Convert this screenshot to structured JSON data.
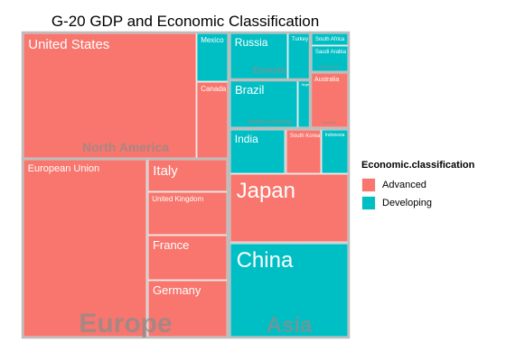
{
  "chart_data": {
    "type": "treemap",
    "title": "G-20 GDP and Economic Classification",
    "legend": {
      "title": "Economic.classification",
      "placement": "right",
      "entries": [
        {
          "label": "Advanced",
          "color": "#F8766D"
        },
        {
          "label": "Developing",
          "color": "#00BFC4"
        }
      ]
    },
    "regions": [
      {
        "name": "North America",
        "countries": [
          {
            "name": "United States",
            "gdp": 15.7,
            "class": "Advanced"
          },
          {
            "name": "Mexico",
            "gdp": 1.2,
            "class": "Developing"
          },
          {
            "name": "Canada",
            "gdp": 1.8,
            "class": "Advanced"
          }
        ]
      },
      {
        "name": "Eurasia",
        "countries": [
          {
            "name": "Russia",
            "gdp": 2.0,
            "class": "Developing"
          },
          {
            "name": "Turkey",
            "gdp": 0.8,
            "class": "Developing"
          }
        ]
      },
      {
        "name": "Africa",
        "countries": [
          {
            "name": "South Africa",
            "gdp": 0.39,
            "class": "Developing"
          }
        ]
      },
      {
        "name": "Middle East",
        "countries": [
          {
            "name": "Saudi Arabia",
            "gdp": 0.73,
            "class": "Developing"
          }
        ]
      },
      {
        "name": "South America",
        "countries": [
          {
            "name": "Brazil",
            "gdp": 2.4,
            "class": "Developing"
          },
          {
            "name": "Argentina",
            "gdp": 0.47,
            "class": "Developing"
          }
        ]
      },
      {
        "name": "Oceania",
        "countries": [
          {
            "name": "Australia",
            "gdp": 1.5,
            "class": "Advanced"
          }
        ]
      },
      {
        "name": "Asia",
        "countries": [
          {
            "name": "India",
            "gdp": 1.8,
            "class": "Developing"
          },
          {
            "name": "South Korea",
            "gdp": 1.1,
            "class": "Advanced"
          },
          {
            "name": "Indonesia",
            "gdp": 0.9,
            "class": "Developing"
          },
          {
            "name": "Japan",
            "gdp": 6.0,
            "class": "Advanced"
          },
          {
            "name": "China",
            "gdp": 8.2,
            "class": "Developing"
          }
        ]
      },
      {
        "name": "Europe",
        "countries": [
          {
            "name": "European Union",
            "gdp": 16.6,
            "class": "Advanced"
          },
          {
            "name": "Italy",
            "gdp": 2.0,
            "class": "Advanced"
          },
          {
            "name": "United Kingdom",
            "gdp": 2.4,
            "class": "Advanced"
          },
          {
            "name": "France",
            "gdp": 2.6,
            "class": "Advanced"
          },
          {
            "name": "Germany",
            "gdp": 3.4,
            "class": "Advanced"
          }
        ]
      }
    ]
  }
}
